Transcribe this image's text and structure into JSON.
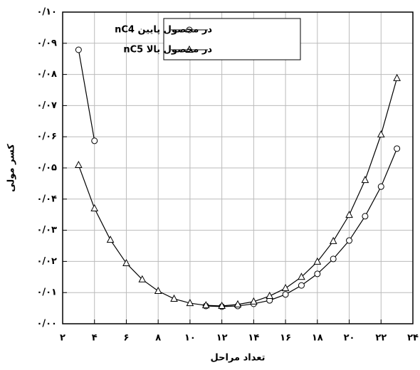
{
  "chart_data": {
    "type": "line",
    "x": [
      3,
      4,
      5,
      6,
      7,
      8,
      9,
      10,
      11,
      12,
      13,
      14,
      15,
      16,
      17,
      18,
      19,
      20,
      21,
      22,
      23
    ],
    "series": [
      {
        "name": "nC4 در محصول پایین",
        "color": "#000000",
        "marker": "circle",
        "values": [
          0.0879,
          0.0587,
          null,
          null,
          null,
          null,
          null,
          null,
          0.0057,
          0.0055,
          0.0057,
          0.0064,
          0.0075,
          0.0094,
          0.0123,
          0.016,
          0.0208,
          0.0267,
          0.0345,
          0.044,
          0.0562
        ]
      },
      {
        "name": "nC5 در محصول بالا",
        "color": "#000000",
        "marker": "triangle",
        "values": [
          0.0509,
          0.037,
          0.0269,
          0.0194,
          0.0142,
          0.0105,
          0.008,
          0.0066,
          0.0059,
          0.0057,
          0.0062,
          0.0071,
          0.0089,
          0.0114,
          0.015,
          0.0199,
          0.0265,
          0.0349,
          0.0461,
          0.0607,
          0.0788
        ]
      }
    ],
    "x_label": "تعداد مراحل",
    "y_label": "کسر مولی",
    "xlim": [
      2,
      24
    ],
    "xticks": [
      {
        "value": 2,
        "label": "۲"
      },
      {
        "value": 4,
        "label": "۴"
      },
      {
        "value": 6,
        "label": "۶"
      },
      {
        "value": 8,
        "label": "۸"
      },
      {
        "value": 10,
        "label": "۱۰"
      },
      {
        "value": 12,
        "label": "۱۲"
      },
      {
        "value": 14,
        "label": "۱۴"
      },
      {
        "value": 16,
        "label": "۱۶"
      },
      {
        "value": 18,
        "label": "۱۸"
      },
      {
        "value": 20,
        "label": "۲۰"
      },
      {
        "value": 22,
        "label": "۲۲"
      },
      {
        "value": 24,
        "label": "۲۴"
      }
    ],
    "ylim": [
      0,
      0.1
    ],
    "yticks": [
      {
        "value": 0,
        "label": "۰/۰۰"
      },
      {
        "value": 0.01,
        "label": "۰/۰۱"
      },
      {
        "value": 0.02,
        "label": "۰/۰۲"
      },
      {
        "value": 0.03,
        "label": "۰/۰۳"
      },
      {
        "value": 0.04,
        "label": "۰/۰۴"
      },
      {
        "value": 0.05,
        "label": "۰/۰۵"
      },
      {
        "value": 0.06,
        "label": "۰/۰۶"
      },
      {
        "value": 0.07,
        "label": "۰/۰۷"
      },
      {
        "value": 0.08,
        "label": "۰/۰۸"
      },
      {
        "value": 0.09,
        "label": "۰/۰۹"
      },
      {
        "value": 0.1,
        "label": "۰/۱۰"
      }
    ],
    "grid": true,
    "legend": "top"
  }
}
